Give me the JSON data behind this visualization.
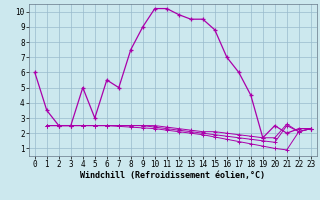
{
  "xlabel": "Windchill (Refroidissement éolien,°C)",
  "xlim": [
    -0.5,
    23.5
  ],
  "ylim": [
    0.5,
    10.5
  ],
  "bg_color": "#cce8ee",
  "line_color": "#aa00aa",
  "grid_color": "#99bbcc",
  "xticks": [
    0,
    1,
    2,
    3,
    4,
    5,
    6,
    7,
    8,
    9,
    10,
    11,
    12,
    13,
    14,
    15,
    16,
    17,
    18,
    19,
    20,
    21,
    22,
    23
  ],
  "yticks": [
    1,
    2,
    3,
    4,
    5,
    6,
    7,
    8,
    9,
    10
  ],
  "main_x": [
    0,
    1,
    2,
    3,
    4,
    5,
    6,
    7,
    8,
    9,
    10,
    11,
    12,
    13,
    14,
    15,
    16,
    17,
    18,
    19,
    20,
    21,
    22,
    23
  ],
  "main_y": [
    6.0,
    3.5,
    2.5,
    2.5,
    5.0,
    3.0,
    5.5,
    5.0,
    7.5,
    9.0,
    10.2,
    10.2,
    9.8,
    9.5,
    9.5,
    8.8,
    7.0,
    6.0,
    4.5,
    1.7,
    2.5,
    2.0,
    2.3,
    2.3
  ],
  "flat1_x": [
    1,
    2,
    3,
    4,
    5,
    6,
    7,
    8,
    9,
    10,
    11,
    12,
    13,
    14,
    15,
    16,
    17,
    18,
    19,
    20,
    21,
    22,
    23
  ],
  "flat1_y": [
    2.5,
    2.5,
    2.5,
    2.5,
    2.5,
    2.5,
    2.5,
    2.5,
    2.5,
    2.4,
    2.3,
    2.2,
    2.1,
    2.0,
    1.9,
    1.8,
    1.7,
    1.6,
    1.5,
    1.4,
    2.5,
    2.1,
    2.3
  ],
  "flat2_x": [
    1,
    2,
    3,
    4,
    5,
    6,
    7,
    8,
    9,
    10,
    11,
    12,
    13,
    14,
    15,
    16,
    17,
    18,
    19,
    20,
    21,
    22,
    23
  ],
  "flat2_y": [
    2.5,
    2.5,
    2.5,
    2.5,
    2.5,
    2.5,
    2.45,
    2.4,
    2.35,
    2.3,
    2.2,
    2.1,
    2.0,
    1.9,
    1.75,
    1.6,
    1.45,
    1.3,
    1.15,
    1.0,
    0.9,
    2.1,
    2.3
  ],
  "flat3_x": [
    1,
    2,
    3,
    4,
    5,
    6,
    7,
    8,
    9,
    10,
    11,
    12,
    13,
    14,
    15,
    16,
    17,
    18,
    19,
    20,
    21,
    22,
    23
  ],
  "flat3_y": [
    2.5,
    2.5,
    2.5,
    2.5,
    2.5,
    2.5,
    2.5,
    2.5,
    2.5,
    2.5,
    2.4,
    2.3,
    2.2,
    2.1,
    2.1,
    2.0,
    1.9,
    1.8,
    1.7,
    1.7,
    2.6,
    2.1,
    2.3
  ],
  "tick_fontsize": 5.5,
  "xlabel_fontsize": 6.0
}
